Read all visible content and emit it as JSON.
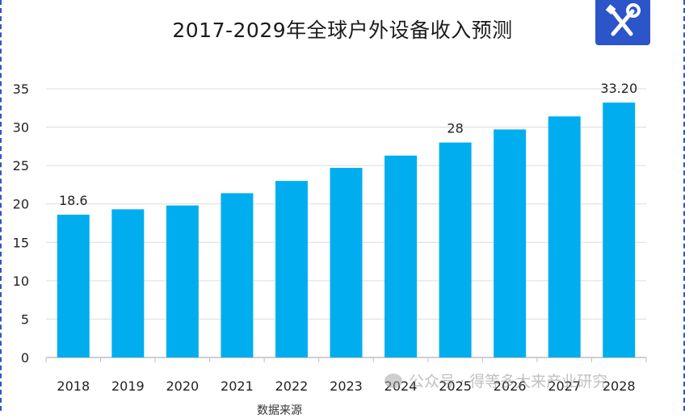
{
  "chart_data": {
    "type": "bar",
    "title": "2017-2029年全球户外设备收入预测",
    "categories": [
      "2018",
      "2019",
      "2020",
      "2021",
      "2022",
      "2023",
      "2024",
      "2025",
      "2026",
      "2027",
      "2028"
    ],
    "values": [
      18.6,
      19.3,
      19.8,
      21.4,
      23.0,
      24.7,
      26.3,
      28.0,
      29.7,
      31.4,
      33.2
    ],
    "data_labels": [
      {
        "category": "2018",
        "text": "18.6"
      },
      {
        "category": "2025",
        "text": "28"
      },
      {
        "category": "2028",
        "text": "33.20"
      }
    ],
    "yticks": [
      "0",
      "5",
      "10",
      "15",
      "20",
      "25",
      "30",
      "35"
    ],
    "ylim": [
      0,
      35
    ],
    "xlabel": "",
    "ylabel": "",
    "grid": true,
    "bar_color": "#00AEEF"
  },
  "watermark": "公众号 · 得等多大来产业研究",
  "source_text": "数据来源",
  "logo_icon": "tools-icon",
  "colors": {
    "frame": "#2f57c2",
    "logo_bg": "#2b55c8",
    "grid": "#dcdcdc",
    "axis": "#bfbfbf"
  }
}
